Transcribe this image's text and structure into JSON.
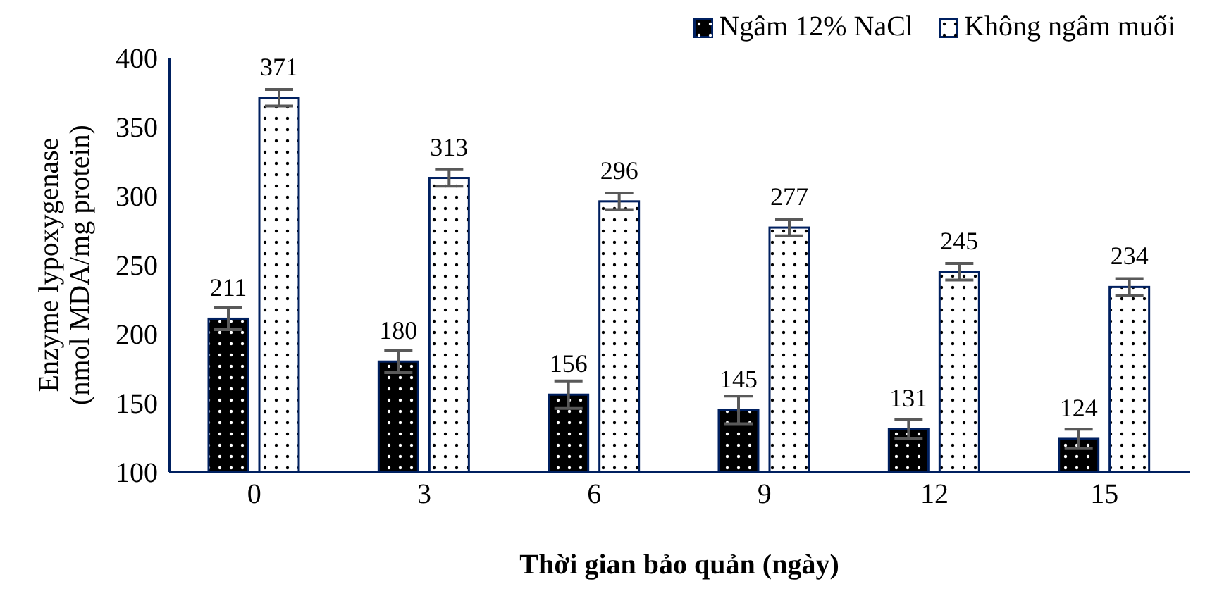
{
  "chart_data": {
    "type": "bar",
    "xlabel": "Thời gian bảo quản (ngày)",
    "ylabel": "Enzyme lypoxygenase\n(nmol MDA/mg protein)",
    "categories": [
      "0",
      "3",
      "6",
      "9",
      "12",
      "15"
    ],
    "series": [
      {
        "name": "Ngâm 12% NaCl",
        "color": "#000000",
        "values": [
          211,
          180,
          156,
          145,
          131,
          124
        ],
        "errors": [
          8,
          8,
          10,
          10,
          7,
          7
        ]
      },
      {
        "name": "Không ngâm muối",
        "color": "#ffffff",
        "values": [
          371,
          313,
          296,
          277,
          245,
          234
        ],
        "errors": [
          6,
          6,
          6,
          6,
          6,
          6
        ]
      }
    ],
    "ylim": [
      100,
      400
    ],
    "yticks": [
      100,
      150,
      200,
      250,
      300,
      350,
      400
    ],
    "grid": false,
    "legend": "top right",
    "data_labels": true
  }
}
